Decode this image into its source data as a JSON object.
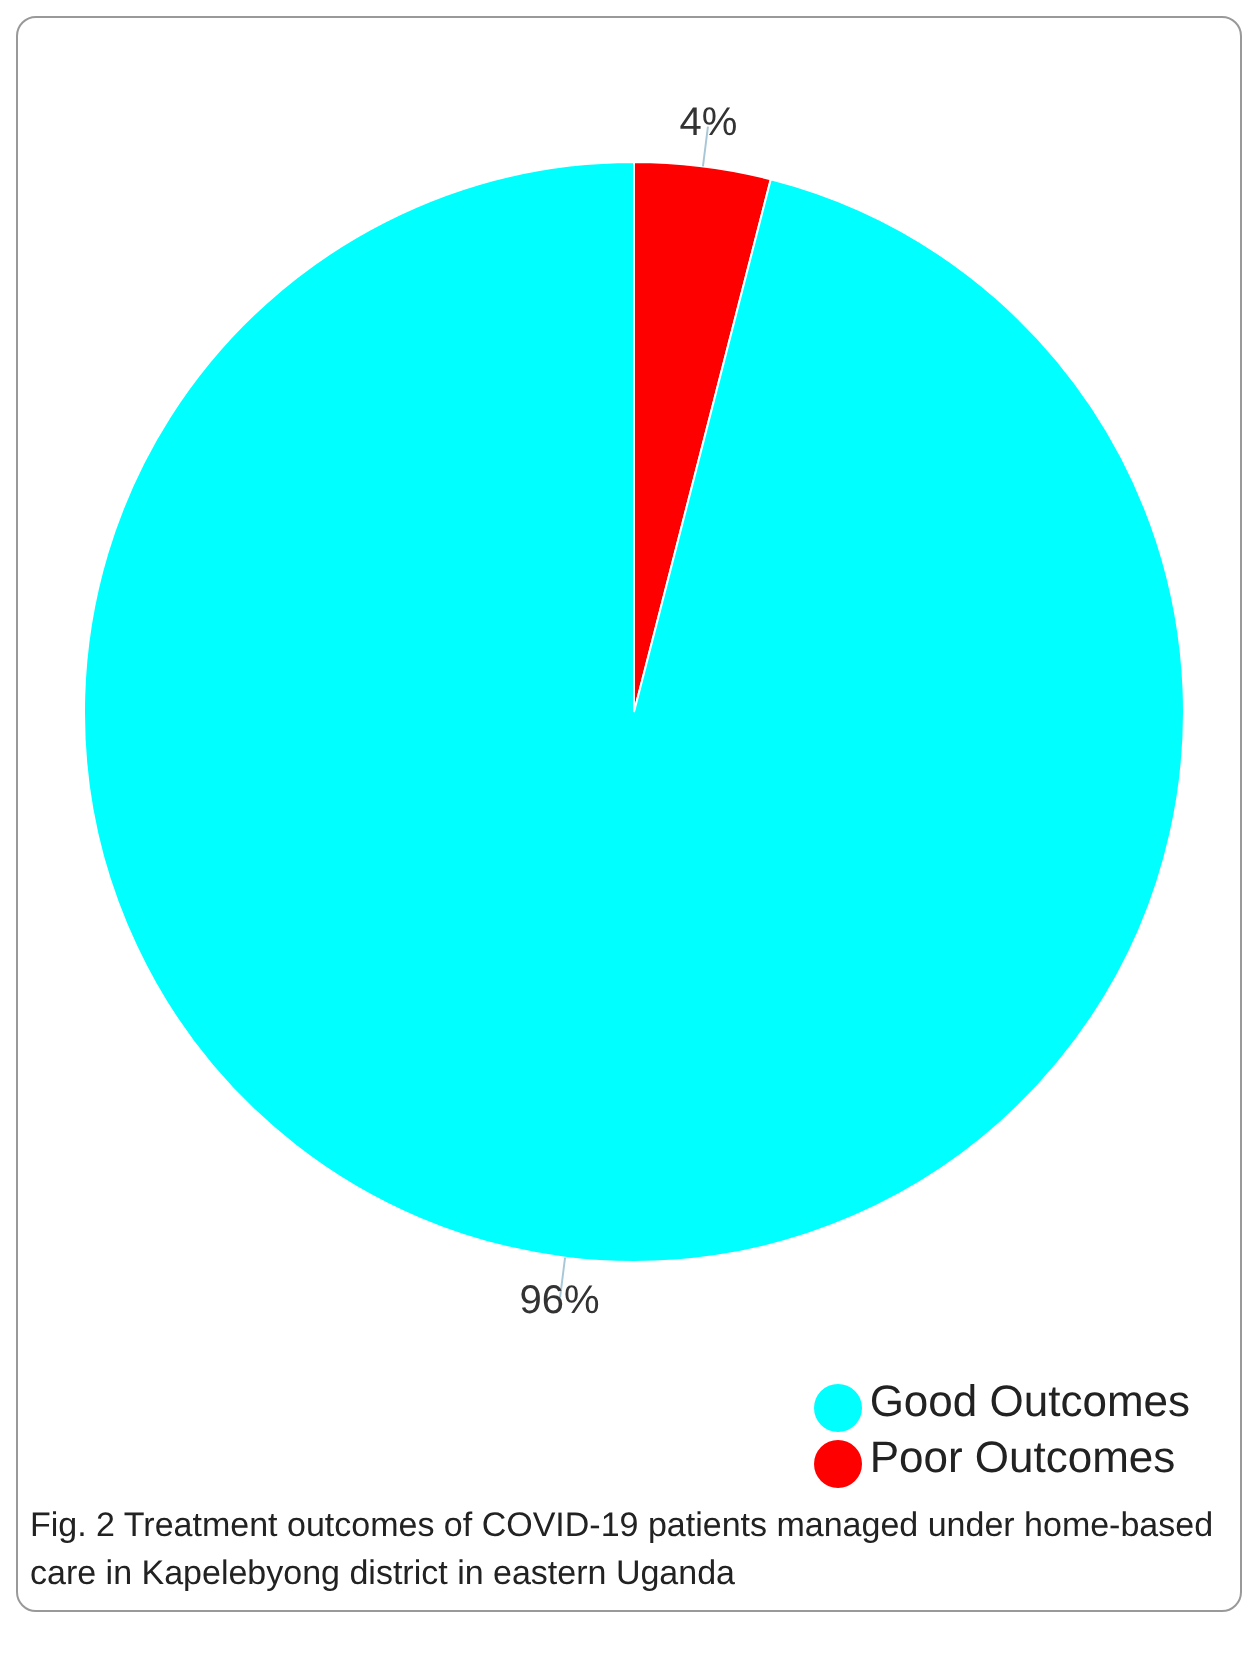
{
  "chart_data": {
    "type": "pie",
    "categories": [
      "Poor Outcomes",
      "Good Outcomes"
    ],
    "values": [
      4,
      96
    ],
    "colors": [
      "#ff0000",
      "#00ffff"
    ],
    "value_labels": [
      "4%",
      "96%"
    ],
    "legend": "bottom right",
    "annotations": [
      "Fig. 2  Treatment outcomes of COVID-19 patients managed under home-based care in Kapelebyong district in eastern Uganda"
    ]
  }
}
